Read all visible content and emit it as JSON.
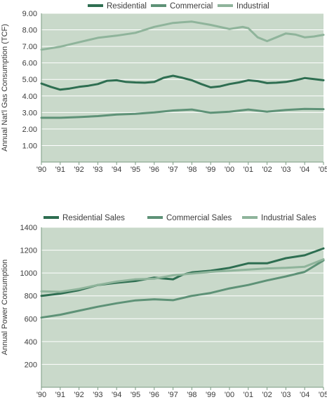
{
  "colors": {
    "plot_background": "#c9d9ca",
    "gridline": "#ffffff",
    "axis": "#7a9a82",
    "series_dark": "#2e6e51",
    "series_mid": "#5e9277",
    "series_light": "#8fb49b"
  },
  "chart_data": [
    {
      "type": "line",
      "title": "",
      "xlabel": "",
      "ylabel": "Annual Nat'l Gas Consumption (TCF)",
      "x_tick_labels": [
        "'90",
        "'91",
        "'92",
        "'93",
        "'94",
        "'95",
        "'96",
        "'97",
        "'98",
        "'99",
        "'00",
        "'01",
        "'02",
        "'03",
        "'04",
        "'05"
      ],
      "y_tick_labels": [
        "1.00",
        "2.00",
        "3.00",
        "4.00",
        "5.00",
        "6.00",
        "7.00",
        "8.00",
        "9.00"
      ],
      "xlim": [
        1990,
        2005
      ],
      "ylim": [
        0,
        9
      ],
      "grid": true,
      "legend_position": "top",
      "series": [
        {
          "name": "Residential",
          "color": "#2e6e51",
          "points": [
            [
              1990,
              4.75
            ],
            [
              1990.5,
              4.55
            ],
            [
              1991,
              4.38
            ],
            [
              1991.5,
              4.45
            ],
            [
              1992,
              4.55
            ],
            [
              1992.5,
              4.62
            ],
            [
              1993,
              4.72
            ],
            [
              1993.5,
              4.92
            ],
            [
              1994,
              4.95
            ],
            [
              1994.5,
              4.85
            ],
            [
              1995,
              4.82
            ],
            [
              1995.5,
              4.8
            ],
            [
              1996,
              4.85
            ],
            [
              1996.5,
              5.1
            ],
            [
              1997,
              5.22
            ],
            [
              1997.5,
              5.1
            ],
            [
              1998,
              4.95
            ],
            [
              1998.5,
              4.72
            ],
            [
              1999,
              4.52
            ],
            [
              1999.5,
              4.58
            ],
            [
              2000,
              4.72
            ],
            [
              2000.5,
              4.82
            ],
            [
              2001,
              4.95
            ],
            [
              2001.5,
              4.9
            ],
            [
              2002,
              4.78
            ],
            [
              2002.5,
              4.8
            ],
            [
              2003,
              4.85
            ],
            [
              2003.5,
              4.95
            ],
            [
              2004,
              5.08
            ],
            [
              2004.5,
              5.02
            ],
            [
              2005,
              4.95
            ]
          ]
        },
        {
          "name": "Commercial",
          "color": "#5e9277",
          "points": [
            [
              1990,
              2.68
            ],
            [
              1991,
              2.68
            ],
            [
              1992,
              2.72
            ],
            [
              1993,
              2.78
            ],
            [
              1994,
              2.88
            ],
            [
              1995,
              2.92
            ],
            [
              1996,
              3.0
            ],
            [
              1997,
              3.12
            ],
            [
              1998,
              3.18
            ],
            [
              1999,
              2.98
            ],
            [
              2000,
              3.05
            ],
            [
              2001,
              3.18
            ],
            [
              2002,
              3.05
            ],
            [
              2003,
              3.15
            ],
            [
              2004,
              3.22
            ],
            [
              2005,
              3.2
            ]
          ]
        },
        {
          "name": "Industrial",
          "color": "#8fb49b",
          "points": [
            [
              1990,
              6.8
            ],
            [
              1991,
              6.98
            ],
            [
              1992,
              7.25
            ],
            [
              1993,
              7.52
            ],
            [
              1994,
              7.65
            ],
            [
              1995,
              7.82
            ],
            [
              1996,
              8.18
            ],
            [
              1997,
              8.42
            ],
            [
              1998,
              8.5
            ],
            [
              1999,
              8.3
            ],
            [
              2000,
              8.05
            ],
            [
              2000.7,
              8.18
            ],
            [
              2001,
              8.1
            ],
            [
              2001.5,
              7.55
            ],
            [
              2002,
              7.32
            ],
            [
              2002.5,
              7.55
            ],
            [
              2003,
              7.78
            ],
            [
              2003.5,
              7.72
            ],
            [
              2004,
              7.55
            ],
            [
              2004.5,
              7.6
            ],
            [
              2005,
              7.7
            ]
          ]
        }
      ]
    },
    {
      "type": "line",
      "title": "",
      "xlabel": "",
      "ylabel": "Annual Power Consumption",
      "x_tick_labels": [
        "'90",
        "'91",
        "'92",
        "'93",
        "'94",
        "'95",
        "'96",
        "'97",
        "'98",
        "'99",
        "'00",
        "'01",
        "'02",
        "'03",
        "'04",
        "'05"
      ],
      "y_tick_labels": [
        "200",
        "400",
        "600",
        "800",
        "1000",
        "1200",
        "1400"
      ],
      "xlim": [
        1990,
        2005
      ],
      "ylim": [
        0,
        1400
      ],
      "grid": true,
      "legend_position": "top",
      "series": [
        {
          "name": "Residential Sales",
          "color": "#2e6e51",
          "points": [
            [
              1990,
              800
            ],
            [
              1991,
              820
            ],
            [
              1992,
              850
            ],
            [
              1993,
              895
            ],
            [
              1994,
              915
            ],
            [
              1995,
              930
            ],
            [
              1996,
              960
            ],
            [
              1997,
              945
            ],
            [
              1997.5,
              985
            ],
            [
              1998,
              1005
            ],
            [
              1999,
              1020
            ],
            [
              2000,
              1045
            ],
            [
              2001,
              1085
            ],
            [
              2001.5,
              1085
            ],
            [
              2002,
              1085
            ],
            [
              2003,
              1130
            ],
            [
              2004,
              1155
            ],
            [
              2005,
              1215
            ]
          ]
        },
        {
          "name": "Commercial Sales",
          "color": "#5e9277",
          "points": [
            [
              1990,
              610
            ],
            [
              1991,
              635
            ],
            [
              1992,
              670
            ],
            [
              1993,
              705
            ],
            [
              1994,
              735
            ],
            [
              1995,
              760
            ],
            [
              1996,
              770
            ],
            [
              1997,
              762
            ],
            [
              1998,
              800
            ],
            [
              1999,
              825
            ],
            [
              2000,
              865
            ],
            [
              2001,
              895
            ],
            [
              2002,
              935
            ],
            [
              2003,
              970
            ],
            [
              2004,
              1010
            ],
            [
              2005,
              1110
            ]
          ]
        },
        {
          "name": "Industrial Sales",
          "color": "#8fb49b",
          "points": [
            [
              1990,
              840
            ],
            [
              1991,
              835
            ],
            [
              1992,
              860
            ],
            [
              1993,
              895
            ],
            [
              1994,
              925
            ],
            [
              1995,
              945
            ],
            [
              1996,
              950
            ],
            [
              1997,
              980
            ],
            [
              1998,
              995
            ],
            [
              1999,
              1010
            ],
            [
              2000,
              1020
            ],
            [
              2001,
              1030
            ],
            [
              2002,
              1040
            ],
            [
              2003,
              1045
            ],
            [
              2004,
              1055
            ],
            [
              2005,
              1120
            ]
          ]
        }
      ]
    }
  ]
}
